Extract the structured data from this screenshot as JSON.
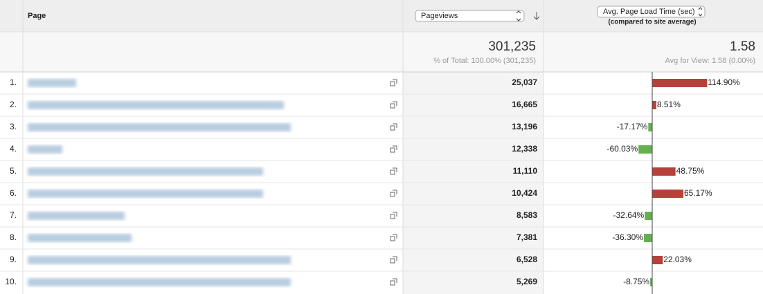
{
  "header": {
    "page_column": "Page",
    "metric_select": "Pageviews",
    "compare_select": "Avg. Page Load Time (sec)",
    "compare_note": "(compared to site average)"
  },
  "summary": {
    "total": "301,235",
    "total_note": "% of Total: 100.00% (301,235)",
    "average": "1.58",
    "average_note": "Avg for View: 1.58 (0.00%)"
  },
  "rows": [
    {
      "index": "1.",
      "pageviews": "25,037",
      "change": 114.9,
      "change_label": "114.90%"
    },
    {
      "index": "2.",
      "pageviews": "16,665",
      "change": 8.51,
      "change_label": "8.51%"
    },
    {
      "index": "3.",
      "pageviews": "13,196",
      "change": -17.17,
      "change_label": "-17.17%"
    },
    {
      "index": "4.",
      "pageviews": "12,338",
      "change": -60.03,
      "change_label": "-60.03%"
    },
    {
      "index": "5.",
      "pageviews": "11,110",
      "change": 48.75,
      "change_label": "48.75%"
    },
    {
      "index": "6.",
      "pageviews": "10,424",
      "change": 65.17,
      "change_label": "65.17%"
    },
    {
      "index": "7.",
      "pageviews": "8,583",
      "change": -32.64,
      "change_label": "-32.64%"
    },
    {
      "index": "8.",
      "pageviews": "7,381",
      "change": -36.3,
      "change_label": "-36.30%"
    },
    {
      "index": "9.",
      "pageviews": "6,528",
      "change": 22.03,
      "change_label": "22.03%"
    },
    {
      "index": "10.",
      "pageviews": "5,269",
      "change": -8.75,
      "change_label": "-8.75%"
    }
  ]
}
